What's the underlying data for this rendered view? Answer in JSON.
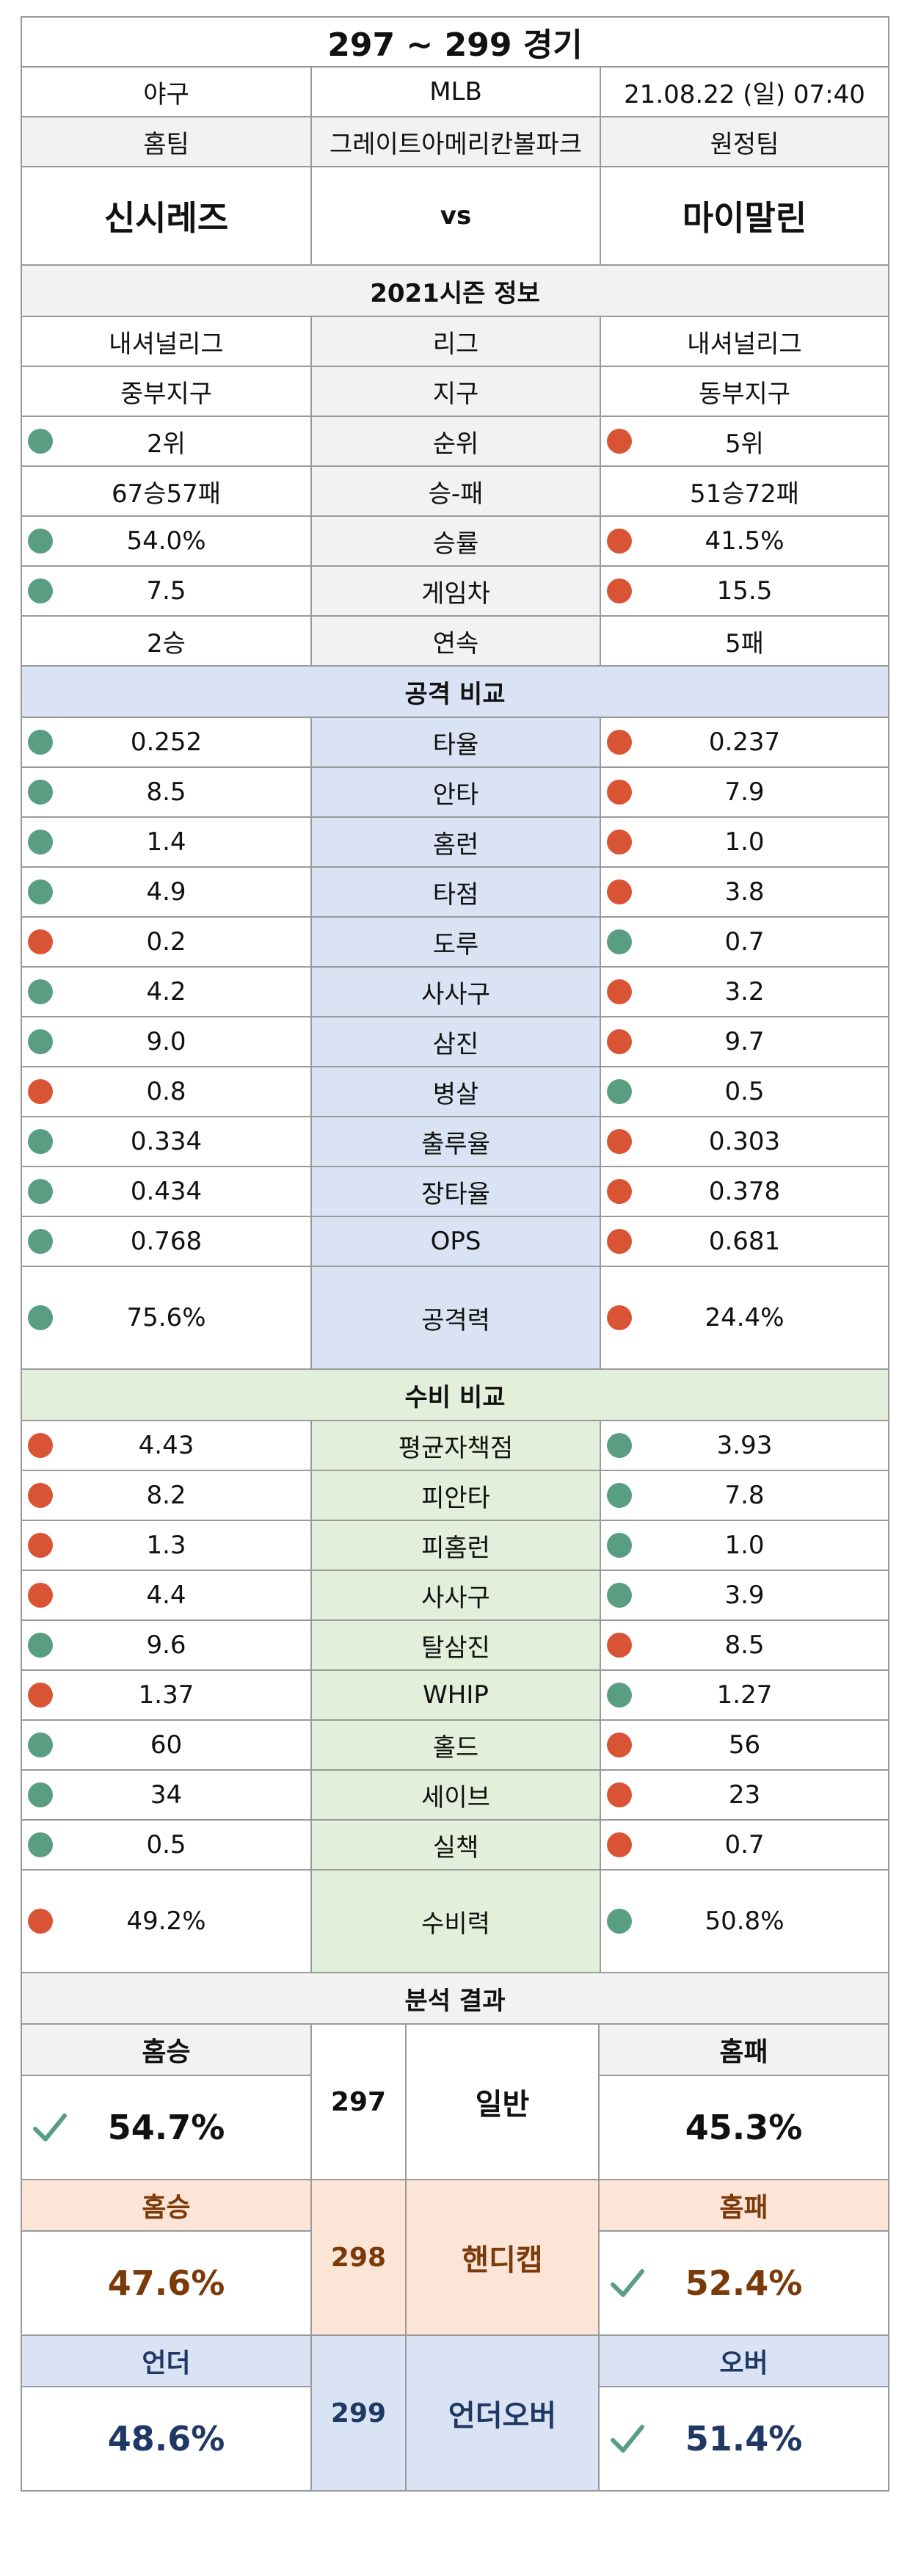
{
  "header": {
    "title": "297 ~ 299 경기",
    "sport": "야구",
    "league": "MLB",
    "datetime": "21.08.22 (일) 07:40",
    "home_label": "홈팀",
    "stadium": "그레이트아메리칸볼파크",
    "away_label": "원정팀",
    "home_team": "신시레즈",
    "vs": "vs",
    "away_team": "마이말린"
  },
  "season": {
    "title": "2021시즌 정보",
    "rows": [
      {
        "label": "리그",
        "home": "내셔널리그",
        "away": "내셔널리그",
        "home_dot": "",
        "away_dot": ""
      },
      {
        "label": "지구",
        "home": "중부지구",
        "away": "동부지구",
        "home_dot": "",
        "away_dot": ""
      },
      {
        "label": "순위",
        "home": "2위",
        "away": "5위",
        "home_dot": "g",
        "away_dot": "r"
      },
      {
        "label": "승-패",
        "home": "67승57패",
        "away": "51승72패",
        "home_dot": "",
        "away_dot": ""
      },
      {
        "label": "승률",
        "home": "54.0%",
        "away": "41.5%",
        "home_dot": "g",
        "away_dot": "r"
      },
      {
        "label": "게임차",
        "home": "7.5",
        "away": "15.5",
        "home_dot": "g",
        "away_dot": "r"
      },
      {
        "label": "연속",
        "home": "2승",
        "away": "5패",
        "home_dot": "",
        "away_dot": ""
      }
    ]
  },
  "offense": {
    "title": "공격 비교",
    "rows": [
      {
        "label": "타율",
        "home": "0.252",
        "away": "0.237",
        "home_dot": "g",
        "away_dot": "r"
      },
      {
        "label": "안타",
        "home": "8.5",
        "away": "7.9",
        "home_dot": "g",
        "away_dot": "r"
      },
      {
        "label": "홈런",
        "home": "1.4",
        "away": "1.0",
        "home_dot": "g",
        "away_dot": "r"
      },
      {
        "label": "타점",
        "home": "4.9",
        "away": "3.8",
        "home_dot": "g",
        "away_dot": "r"
      },
      {
        "label": "도루",
        "home": "0.2",
        "away": "0.7",
        "home_dot": "r",
        "away_dot": "g"
      },
      {
        "label": "사사구",
        "home": "4.2",
        "away": "3.2",
        "home_dot": "g",
        "away_dot": "r"
      },
      {
        "label": "삼진",
        "home": "9.0",
        "away": "9.7",
        "home_dot": "g",
        "away_dot": "r"
      },
      {
        "label": "병살",
        "home": "0.8",
        "away": "0.5",
        "home_dot": "r",
        "away_dot": "g"
      },
      {
        "label": "출루율",
        "home": "0.334",
        "away": "0.303",
        "home_dot": "g",
        "away_dot": "r"
      },
      {
        "label": "장타율",
        "home": "0.434",
        "away": "0.378",
        "home_dot": "g",
        "away_dot": "r"
      },
      {
        "label": "OPS",
        "home": "0.768",
        "away": "0.681",
        "home_dot": "g",
        "away_dot": "r"
      }
    ],
    "power": {
      "label": "공격력",
      "home": "75.6%",
      "away": "24.4%",
      "home_dot": "g",
      "away_dot": "r"
    }
  },
  "defense": {
    "title": "수비 비교",
    "rows": [
      {
        "label": "평균자책점",
        "home": "4.43",
        "away": "3.93",
        "home_dot": "r",
        "away_dot": "g"
      },
      {
        "label": "피안타",
        "home": "8.2",
        "away": "7.8",
        "home_dot": "r",
        "away_dot": "g"
      },
      {
        "label": "피홈런",
        "home": "1.3",
        "away": "1.0",
        "home_dot": "r",
        "away_dot": "g"
      },
      {
        "label": "사사구",
        "home": "4.4",
        "away": "3.9",
        "home_dot": "r",
        "away_dot": "g"
      },
      {
        "label": "탈삼진",
        "home": "9.6",
        "away": "8.5",
        "home_dot": "g",
        "away_dot": "r"
      },
      {
        "label": "WHIP",
        "home": "1.37",
        "away": "1.27",
        "home_dot": "r",
        "away_dot": "g"
      },
      {
        "label": "홀드",
        "home": "60",
        "away": "56",
        "home_dot": "g",
        "away_dot": "r"
      },
      {
        "label": "세이브",
        "home": "34",
        "away": "23",
        "home_dot": "g",
        "away_dot": "r"
      },
      {
        "label": "실책",
        "home": "0.5",
        "away": "0.7",
        "home_dot": "g",
        "away_dot": "r"
      }
    ],
    "power": {
      "label": "수비력",
      "home": "49.2%",
      "away": "50.8%",
      "home_dot": "r",
      "away_dot": "g"
    }
  },
  "analysis": {
    "title": "분석 결과",
    "blocks": [
      {
        "num": "297",
        "kind": "일반",
        "left_label": "홈승",
        "left_value": "54.7%",
        "right_label": "홈패",
        "right_value": "45.3%",
        "pick": "left"
      },
      {
        "num": "298",
        "kind": "핸디캡",
        "left_label": "홈승",
        "left_value": "47.6%",
        "right_label": "홈패",
        "right_value": "52.4%",
        "pick": "right"
      },
      {
        "num": "299",
        "kind": "언더오버",
        "left_label": "언더",
        "left_value": "48.6%",
        "right_label": "오버",
        "right_value": "51.4%",
        "pick": "right"
      }
    ]
  },
  "colors": {
    "dot_green": "#5a9e82",
    "dot_red": "#d95435",
    "offense_bg": "#dae3f3",
    "defense_bg": "#e2efda",
    "handicap_bg": "#fce4d6",
    "handicap_text": "#7b3a0a",
    "overunder_text": "#1f3864",
    "check": "#5a9e82"
  }
}
